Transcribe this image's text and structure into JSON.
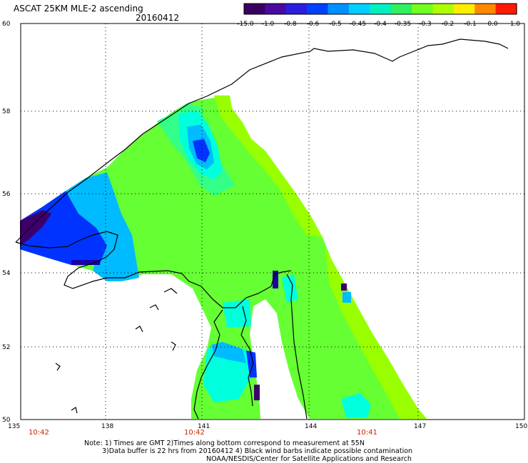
{
  "header": {
    "title": "ASCAT 25KM MLE-2 ascending",
    "date": "20160412"
  },
  "colorbar": {
    "ticks": [
      "-15.0",
      "-1.0",
      "-0.8",
      "-0.6",
      "-0.5",
      "-0.45",
      "-0.4",
      "-0.35",
      "-0.3",
      "-0.2",
      "-0.1",
      "0.0",
      "1.0"
    ],
    "colors": [
      "#3a0060",
      "#4a0aa0",
      "#2a1ee0",
      "#0040ff",
      "#0090ff",
      "#00d0ff",
      "#00f0c0",
      "#30f060",
      "#70ff20",
      "#b0ff00",
      "#ffee00",
      "#ff8800",
      "#ff1a00"
    ]
  },
  "axes": {
    "lon_ticks": [
      "135",
      "138",
      "141",
      "144",
      "147",
      "150"
    ],
    "lat_ticks": [
      "60",
      "58",
      "56",
      "54",
      "52",
      "50"
    ],
    "time_labels": [
      "10:42",
      "10:42",
      "10:41"
    ]
  },
  "notes": {
    "line1": "Note: 1) Times are GMT 2)Times along bottom correspond to measurement at 55N",
    "line2": "3)Data buffer is 22 hrs from 20160412 4) Black wind barbs indicate possible contamination",
    "line3": "NOAA/NESDIS/Center for Satellite Applications and Research"
  },
  "swath_palette": {
    "main": "#66ff33",
    "lime": "#99ff00",
    "mid": "#33ff88",
    "cyan": "#00ffdd",
    "sky": "#00bbff",
    "blue": "#0033ff",
    "deep": "#1a00aa",
    "purple": "#3d006b"
  }
}
